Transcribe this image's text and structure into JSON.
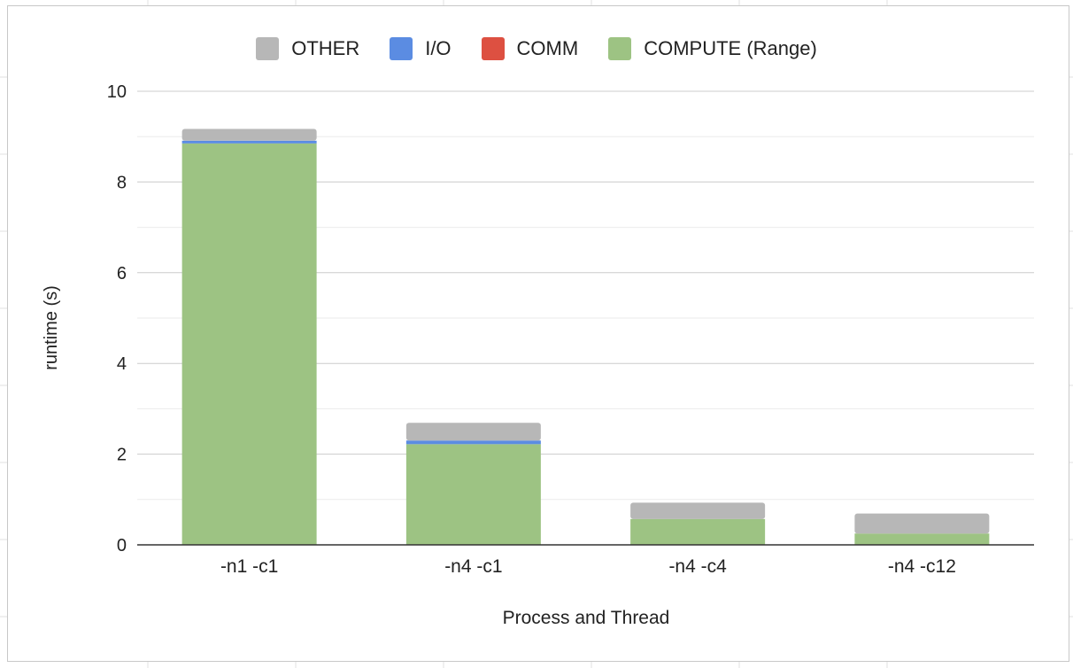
{
  "chart_data": {
    "type": "bar",
    "stacked": true,
    "categories": [
      "-n1 -c1",
      "-n4 -c1",
      "-n4 -c4",
      "-n4 -c12"
    ],
    "series": [
      {
        "name": "COMPUTE (Range)",
        "color": "#9dc383",
        "values": [
          8.85,
          2.22,
          0.57,
          0.25
        ]
      },
      {
        "name": "COMM",
        "color": "#dd5041",
        "values": [
          0.0,
          0.0,
          0.0,
          0.0
        ]
      },
      {
        "name": "I/O",
        "color": "#5b8ce2",
        "values": [
          0.06,
          0.08,
          0.0,
          0.0
        ]
      },
      {
        "name": "OTHER",
        "color": "#b7b7b7",
        "values": [
          0.26,
          0.39,
          0.36,
          0.44
        ]
      }
    ],
    "legend_order": [
      "OTHER",
      "I/O",
      "COMM",
      "COMPUTE (Range)"
    ],
    "xlabel": "Process and Thread",
    "ylabel": "runtime (s)",
    "ylim": [
      0,
      10
    ],
    "yticks": [
      0,
      2,
      4,
      6,
      8,
      10
    ],
    "grid": true,
    "legend_position": "top"
  }
}
